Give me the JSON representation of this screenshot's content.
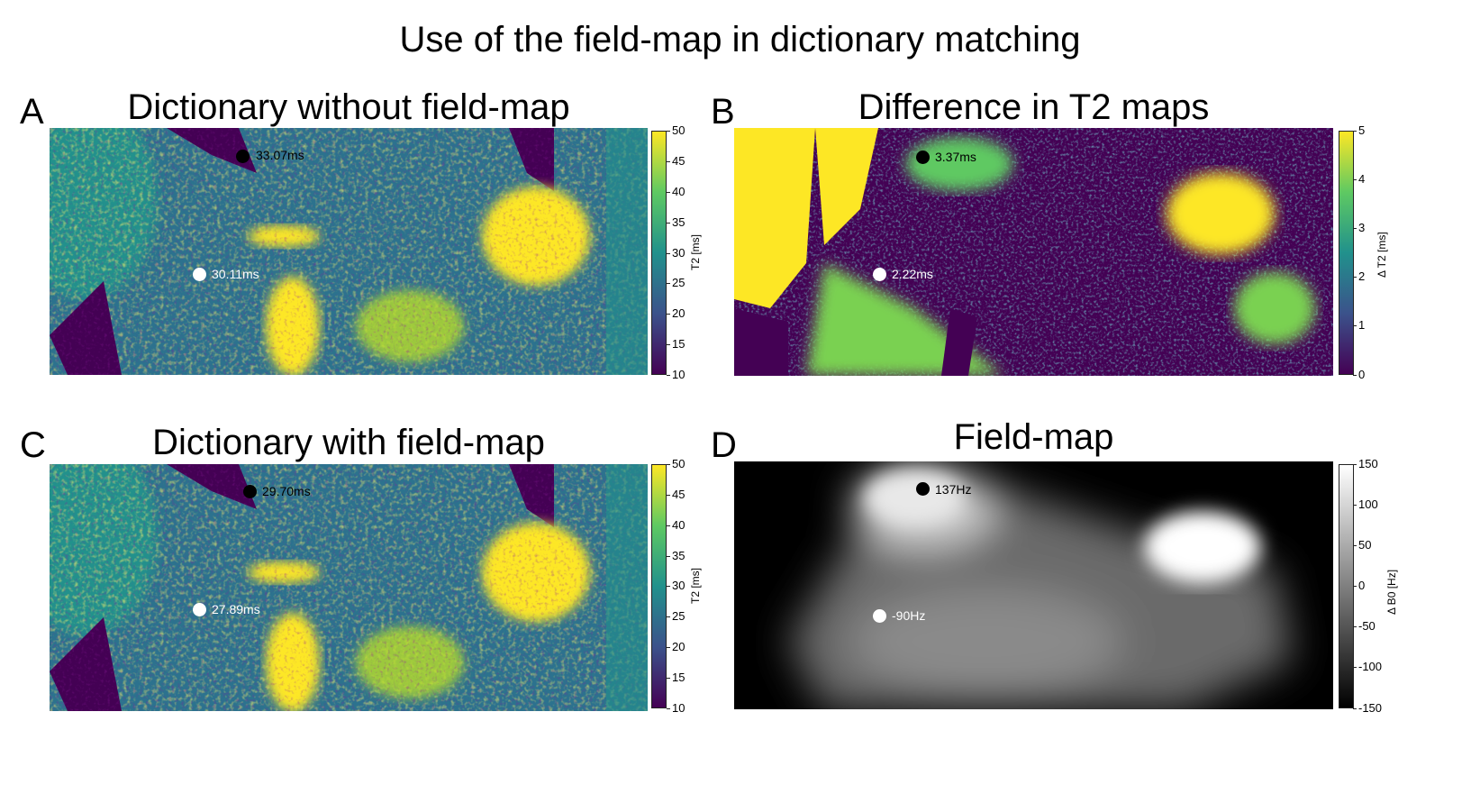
{
  "title": "Use of the field-map in dictionary matching",
  "panels": {
    "a": {
      "letter": "A",
      "title": "Dictionary without field-map",
      "colorbar_label": "T2 [ms]",
      "ticks": [
        "50",
        "45",
        "40",
        "35",
        "30",
        "25",
        "20",
        "15",
        "10"
      ],
      "markers": {
        "black": "33.07ms",
        "white": "30.11ms"
      }
    },
    "b": {
      "letter": "B",
      "title": "Difference in T2 maps",
      "colorbar_label": "Δ T2 [ms]",
      "ticks": [
        "5",
        "4",
        "3",
        "2",
        "1",
        "0"
      ],
      "markers": {
        "black": "3.37ms",
        "white": "2.22ms"
      }
    },
    "c": {
      "letter": "C",
      "title": "Dictionary with field-map",
      "colorbar_label": "T2 [ms]",
      "ticks": [
        "50",
        "45",
        "40",
        "35",
        "30",
        "25",
        "20",
        "15",
        "10"
      ],
      "markers": {
        "black": "29.70ms",
        "white": "27.89ms"
      }
    },
    "d": {
      "letter": "D",
      "title": "Field-map",
      "colorbar_label": "Δ B0 [Hz]",
      "ticks": [
        "150",
        "100",
        "50",
        "0",
        "-50",
        "-100",
        "-150"
      ],
      "markers": {
        "black": "137Hz",
        "white": "-90Hz"
      }
    }
  },
  "colors": {
    "viridis_low": "#440154",
    "viridis_mid": "#21918c",
    "viridis_high": "#fde725"
  }
}
